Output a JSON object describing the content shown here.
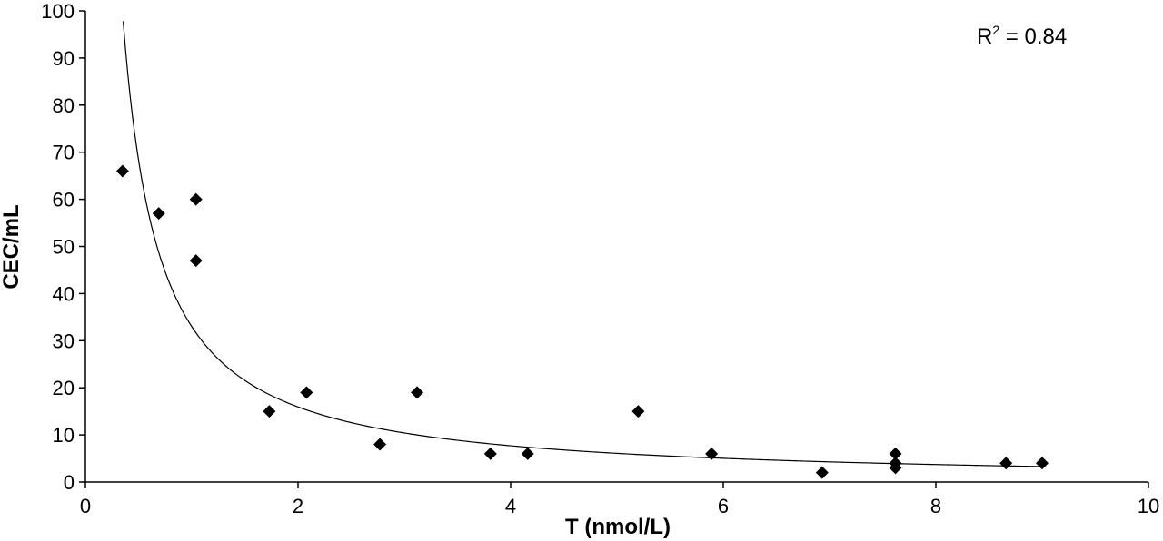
{
  "chart_data": {
    "type": "scatter",
    "title": "",
    "xlabel": "T (nmol/L)",
    "ylabel": "CEC/mL",
    "xlim": [
      0,
      10
    ],
    "ylim": [
      0,
      100
    ],
    "x_ticks": [
      0,
      2,
      4,
      6,
      8,
      10
    ],
    "y_ticks": [
      0,
      10,
      20,
      30,
      40,
      50,
      60,
      70,
      80,
      90,
      100
    ],
    "grid": false,
    "legend": "none",
    "marker": "diamond",
    "marker_color": "#000000",
    "series": [
      {
        "points": [
          {
            "x": 0.35,
            "y": 66
          },
          {
            "x": 0.69,
            "y": 57
          },
          {
            "x": 1.04,
            "y": 60
          },
          {
            "x": 1.04,
            "y": 47
          },
          {
            "x": 1.73,
            "y": 15
          },
          {
            "x": 2.08,
            "y": 19
          },
          {
            "x": 2.77,
            "y": 8
          },
          {
            "x": 3.12,
            "y": 19
          },
          {
            "x": 3.81,
            "y": 6
          },
          {
            "x": 4.16,
            "y": 6
          },
          {
            "x": 5.2,
            "y": 15
          },
          {
            "x": 5.89,
            "y": 6
          },
          {
            "x": 6.93,
            "y": 2
          },
          {
            "x": 7.62,
            "y": 6
          },
          {
            "x": 7.62,
            "y": 4
          },
          {
            "x": 7.62,
            "y": 3
          },
          {
            "x": 8.66,
            "y": 4
          },
          {
            "x": 9.0,
            "y": 4
          }
        ]
      }
    ],
    "trendline": {
      "type": "power",
      "equation": "y = 33 * x^-1.05",
      "a": 33,
      "b": -1.05,
      "x_range": [
        0.29,
        9.0
      ],
      "color": "#000000"
    },
    "annotations": [
      {
        "base": "R",
        "superscript": "2",
        "rest": " = 0.84",
        "position": "top-right"
      }
    ]
  }
}
